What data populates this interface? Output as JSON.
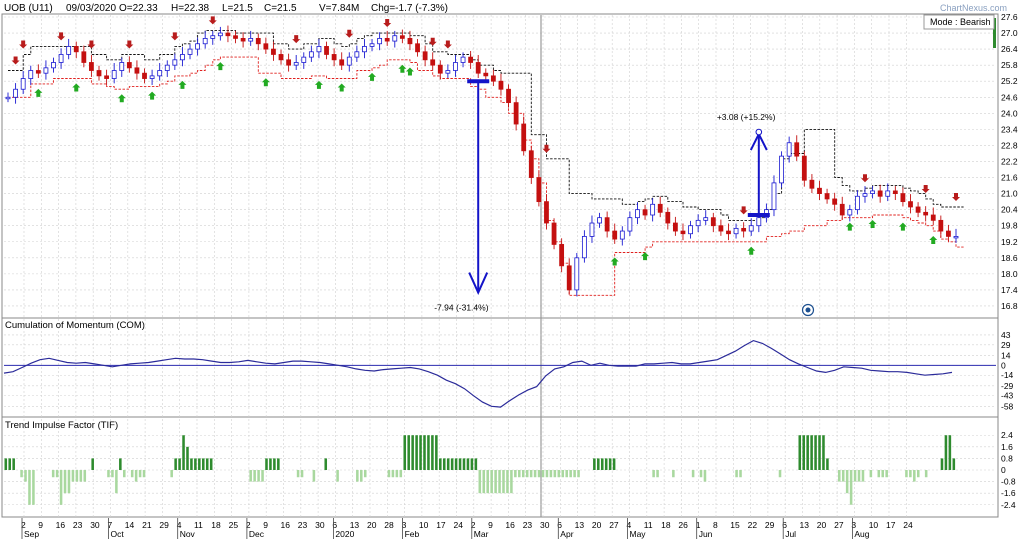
{
  "header": {
    "symbol": "UOB (U11)",
    "date": "09/03/2020",
    "open": "O=22.33",
    "high": "H=22.38",
    "low": "L=21.5",
    "close": "C=21.5",
    "volume": "V=7.84M",
    "change": "Chg=-1.7 (-7.3%)",
    "watermark": "ChartNexus.com",
    "mode": "Mode : Bearish"
  },
  "colors": {
    "up": "#1a1ad2",
    "down": "#c41010",
    "grid": "#d0d0d0",
    "upper_band": "#111111",
    "lower_band": "#e0201e",
    "com_line": "#2b2b9a",
    "tif_pos": "#2e8b2e",
    "tif_neg": "#a9d89f",
    "buy_arrow": "#22aa22",
    "sell_arrow": "#b81c1c"
  },
  "chart_data": [
    {
      "type": "candlestick",
      "title": "UOB (U11)",
      "ylim": [
        16.5,
        27.6
      ],
      "yticks": [
        "27.6",
        "27.0",
        "26.4",
        "25.8",
        "25.2",
        "24.6",
        "24.0",
        "23.4",
        "22.8",
        "22.2",
        "21.6",
        "21.0",
        "20.4",
        "19.8",
        "19.2",
        "18.6",
        "18.0",
        "17.4",
        "16.8"
      ],
      "annotations": [
        {
          "text": "-7.94 (-31.4%)",
          "arrow": "down",
          "from_value": 25.2,
          "to_value": 17.3,
          "x_index": 62
        },
        {
          "text": "+3.08 (+15.2%)",
          "arrow": "up",
          "from_value": 20.2,
          "to_value": 23.3,
          "x_index": 99
        }
      ],
      "close_series": [
        24.6,
        24.9,
        25.3,
        25.6,
        25.5,
        25.7,
        25.9,
        26.2,
        26.5,
        26.3,
        25.9,
        25.6,
        25.4,
        25.3,
        25.6,
        25.9,
        25.7,
        25.5,
        25.3,
        25.4,
        25.6,
        25.8,
        26.0,
        26.2,
        26.4,
        26.6,
        26.8,
        26.9,
        27.0,
        26.9,
        26.8,
        26.7,
        26.8,
        26.6,
        26.4,
        26.2,
        26.0,
        25.8,
        25.9,
        26.1,
        26.3,
        26.5,
        26.2,
        26.0,
        25.8,
        26.1,
        26.3,
        26.5,
        26.6,
        26.8,
        26.7,
        26.9,
        26.8,
        26.6,
        26.3,
        26.0,
        25.8,
        25.5,
        25.6,
        25.9,
        26.1,
        25.9,
        25.5,
        25.4,
        25.2,
        24.9,
        24.4,
        23.6,
        22.6,
        21.6,
        20.7,
        19.9,
        19.1,
        18.3,
        17.4,
        18.6,
        19.4,
        19.9,
        20.1,
        19.6,
        19.3,
        19.6,
        20.1,
        20.4,
        20.2,
        20.6,
        20.3,
        19.9,
        19.6,
        19.5,
        19.8,
        20.0,
        20.1,
        19.8,
        19.6,
        19.5,
        19.7,
        19.6,
        19.8,
        20.1,
        20.4,
        21.4,
        22.4,
        22.9,
        22.4,
        21.5,
        21.2,
        21.0,
        20.8,
        20.6,
        20.2,
        20.4,
        20.9,
        21.0,
        21.1,
        20.9,
        21.1,
        21.0,
        20.7,
        20.5,
        20.3,
        20.2,
        20.0,
        19.6,
        19.4,
        19.4
      ],
      "upper_band": [
        25.6,
        25.6,
        26.2,
        26.5,
        26.5,
        26.5,
        26.5,
        26.5,
        26.5,
        26.5,
        26.5,
        26.2,
        26.2,
        26.0,
        26.0,
        26.2,
        26.2,
        26.2,
        26.0,
        26.0,
        26.2,
        26.2,
        26.5,
        26.6,
        26.7,
        27.0,
        27.1,
        27.1,
        27.1,
        27.1,
        27.0,
        27.0,
        27.0,
        27.0,
        27.0,
        26.6,
        26.6,
        26.4,
        26.4,
        26.6,
        26.6,
        26.8,
        26.8,
        26.6,
        26.5,
        26.6,
        26.8,
        26.9,
        27.0,
        27.0,
        27.0,
        27.0,
        27.0,
        26.9,
        26.9,
        26.6,
        26.3,
        26.3,
        26.2,
        26.2,
        26.2,
        26.0,
        25.8,
        25.8,
        25.6,
        25.5,
        25.5,
        25.5,
        25.5,
        23.2,
        23.2,
        22.3,
        22.3,
        22.3,
        21.0,
        21.0,
        21.0,
        20.8,
        20.8,
        20.8,
        20.8,
        20.6,
        20.6,
        20.7,
        20.8,
        20.9,
        20.9,
        20.7,
        20.7,
        20.5,
        20.5,
        20.4,
        20.4,
        20.4,
        20.2,
        20.0,
        20.0,
        20.0,
        20.0,
        20.1,
        20.4,
        21.0,
        22.3,
        22.5,
        22.5,
        23.4,
        23.4,
        23.4,
        23.4,
        21.6,
        21.3,
        21.1,
        21.1,
        21.2,
        21.3,
        21.3,
        21.3,
        21.3,
        21.2,
        21.1,
        21.0,
        20.8,
        20.6,
        20.5,
        20.5,
        20.5
      ],
      "lower_band": [
        24.6,
        24.6,
        24.6,
        25.1,
        25.1,
        25.1,
        25.3,
        25.3,
        25.3,
        25.3,
        25.3,
        25.1,
        25.1,
        25.0,
        24.9,
        24.9,
        25.0,
        25.0,
        25.0,
        25.0,
        25.1,
        25.2,
        25.4,
        25.4,
        25.5,
        25.6,
        25.8,
        26.0,
        26.1,
        26.1,
        26.1,
        26.1,
        26.1,
        25.5,
        25.5,
        25.5,
        25.3,
        25.3,
        25.3,
        25.3,
        25.4,
        25.4,
        25.3,
        25.3,
        25.3,
        25.3,
        25.6,
        25.6,
        25.7,
        25.8,
        26.0,
        26.0,
        26.0,
        25.9,
        25.6,
        25.6,
        25.4,
        25.3,
        25.3,
        25.3,
        25.3,
        25.0,
        24.9,
        24.6,
        24.6,
        24.4,
        24.0,
        24.0,
        23.0,
        22.3,
        21.4,
        20.0,
        19.2,
        18.4,
        17.2,
        17.2,
        17.2,
        17.2,
        17.2,
        17.2,
        18.8,
        18.8,
        18.8,
        18.8,
        19.0,
        19.2,
        19.2,
        19.2,
        19.2,
        19.2,
        19.2,
        19.2,
        19.2,
        19.2,
        19.2,
        19.2,
        19.2,
        19.2,
        19.2,
        19.2,
        19.4,
        19.4,
        19.5,
        19.6,
        19.6,
        19.8,
        19.8,
        19.8,
        20.0,
        20.0,
        20.1,
        20.1,
        20.1,
        20.1,
        20.2,
        20.2,
        20.2,
        20.2,
        20.1,
        20.0,
        19.9,
        19.8,
        19.6,
        19.3,
        19.2,
        19.0
      ],
      "buy_signals": [
        4,
        9,
        15,
        19,
        23,
        28,
        34,
        41,
        44,
        48,
        52,
        53,
        80,
        84,
        98,
        111,
        114,
        118,
        122
      ],
      "sell_signals": [
        1,
        2,
        7,
        11,
        16,
        22,
        27,
        38,
        45,
        50,
        56,
        58,
        71,
        97,
        113,
        121,
        125
      ]
    },
    {
      "type": "line",
      "title": "Cumulation of Momentum (COM)",
      "ylim": [
        -66,
        50
      ],
      "yticks": [
        "43",
        "29",
        "14",
        "0",
        "-14",
        "-29",
        "-43",
        "-58"
      ],
      "values": [
        -11,
        -9,
        -3,
        3,
        8,
        10,
        7,
        4,
        3,
        4,
        2,
        0,
        -2,
        0,
        2,
        3,
        4,
        6,
        8,
        10,
        9,
        9,
        8,
        6,
        4,
        4,
        5,
        7,
        5,
        3,
        2,
        4,
        6,
        6,
        5,
        4,
        2,
        0,
        -2,
        -5,
        -7,
        -8,
        -6,
        -5,
        -4,
        -3,
        -5,
        -9,
        -14,
        -21,
        -26,
        -33,
        -43,
        -52,
        -58,
        -59,
        -50,
        -42,
        -35,
        -30,
        -15,
        -5,
        -2,
        4,
        6,
        0,
        3,
        0,
        -1,
        -1,
        -1,
        2,
        2,
        3,
        4,
        2,
        2,
        4,
        6,
        8,
        14,
        20,
        28,
        35,
        31,
        24,
        16,
        8,
        2,
        -3,
        -8,
        -10,
        -7,
        -2,
        -3,
        -4,
        -7,
        -8,
        -9,
        -9,
        -10,
        -12,
        -14,
        -13,
        -12,
        -10
      ]
    },
    {
      "type": "bar",
      "title": "Trend Impulse Factor (TIF)",
      "ylim": [
        -2.9,
        2.9
      ],
      "yticks": [
        "2.4",
        "1.6",
        "0.8",
        "0",
        "-0.8",
        "-1.6",
        "-2.4"
      ],
      "values": [
        0.8,
        0.8,
        0.8,
        0,
        -0.5,
        -0.8,
        -2.4,
        -2.4,
        0,
        0,
        0,
        0,
        -0.5,
        -0.5,
        -2.4,
        -1.6,
        -1.6,
        -0.8,
        -0.8,
        -0.8,
        -0.8,
        0,
        0.8,
        0,
        0,
        0,
        -0.5,
        -0.5,
        -1.6,
        0.8,
        -0.5,
        0,
        -0.5,
        -0.8,
        -0.5,
        -0.5,
        0,
        0,
        0,
        0,
        0,
        0,
        -0.5,
        0.8,
        0.8,
        2.4,
        1.6,
        0.8,
        0.8,
        0.8,
        0.8,
        0.8,
        0.8,
        0,
        0,
        0,
        0,
        0,
        0,
        0,
        0,
        0,
        -0.8,
        -0.8,
        -0.8,
        -0.8,
        0.8,
        0.8,
        0.8,
        0.8,
        0,
        0,
        0,
        0,
        -0.5,
        -0.5,
        0,
        0,
        -0.8,
        0,
        0,
        0.8,
        0,
        0,
        -0.8,
        0,
        0,
        0,
        0,
        -0.8,
        -0.8,
        -0.5,
        0,
        0,
        0,
        0,
        0,
        -0.5,
        -0.5,
        -0.5,
        -0.5,
        2.4,
        2.4,
        2.4,
        2.4,
        2.4,
        2.4,
        2.4,
        2.4,
        2.4,
        0.8,
        0.8,
        0.8,
        0.8,
        0.8,
        0.8,
        0.8,
        0.8,
        0.8,
        0.8,
        -1.6,
        -1.6,
        -1.6,
        -1.6,
        -1.6,
        -1.6,
        -1.6,
        -1.6,
        -1.6,
        -0.5,
        -0.5,
        -0.5,
        -0.5,
        -0.5,
        -0.5,
        -0.5,
        -0.5,
        -0.5,
        -0.5,
        -0.5,
        -0.5,
        -0.5,
        -0.5,
        -0.5,
        -0.5,
        -0.5,
        0,
        0,
        0,
        0.8,
        0.8,
        0.8,
        0.8,
        0.8,
        0.8,
        0,
        0,
        0,
        0,
        0,
        0,
        0,
        0,
        0,
        -0.5,
        -0.5,
        0,
        0,
        0,
        -0.5,
        0,
        0,
        0,
        0,
        -0.5,
        0,
        -0.5,
        -0.8,
        0,
        0,
        0,
        0,
        0,
        0,
        0,
        -0.5,
        -0.5,
        0,
        0,
        0,
        0,
        0,
        0,
        0,
        0,
        0,
        -0.5,
        0,
        0,
        0,
        0,
        2.4,
        2.4,
        2.4,
        2.4,
        2.4,
        2.4,
        2.4,
        0.8,
        0,
        0,
        -0.8,
        -0.8,
        -1.6,
        -2.4,
        -0.8,
        -0.8,
        -0.8,
        0,
        -0.5,
        0,
        -0.5,
        -0.5,
        -0.5,
        0,
        0,
        0,
        0,
        -0.5,
        -0.5,
        -0.8,
        -0.5,
        0,
        -0.5,
        0,
        0,
        0,
        0.8,
        2.4,
        2.4,
        0.8
      ]
    }
  ],
  "x_axis": {
    "day_labels": [
      "2",
      "9",
      "16",
      "23",
      "30",
      "7",
      "14",
      "21",
      "29",
      "4",
      "11",
      "18",
      "25",
      "2",
      "9",
      "16",
      "23",
      "30",
      "6",
      "13",
      "20",
      "28",
      "3",
      "10",
      "17",
      "24",
      "2",
      "9",
      "16",
      "23",
      "30",
      "6",
      "13",
      "20",
      "27",
      "4",
      "11",
      "18",
      "26",
      "1",
      "8",
      "15",
      "22",
      "29",
      "6",
      "13",
      "20",
      "27",
      "3",
      "10",
      "17",
      "24"
    ],
    "month_labels": [
      {
        "text": "Sep",
        "at": 0
      },
      {
        "text": "Oct",
        "at": 5
      },
      {
        "text": "Nov",
        "at": 9
      },
      {
        "text": "Dec",
        "at": 13
      },
      {
        "text": "2020",
        "at": 18
      },
      {
        "text": "Feb",
        "at": 22
      },
      {
        "text": "Mar",
        "at": 26
      },
      {
        "text": "Apr",
        "at": 31
      },
      {
        "text": "May",
        "at": 35
      },
      {
        "text": "Jun",
        "at": 39
      },
      {
        "text": "Jul",
        "at": 44
      },
      {
        "text": "Aug",
        "at": 48
      }
    ]
  }
}
